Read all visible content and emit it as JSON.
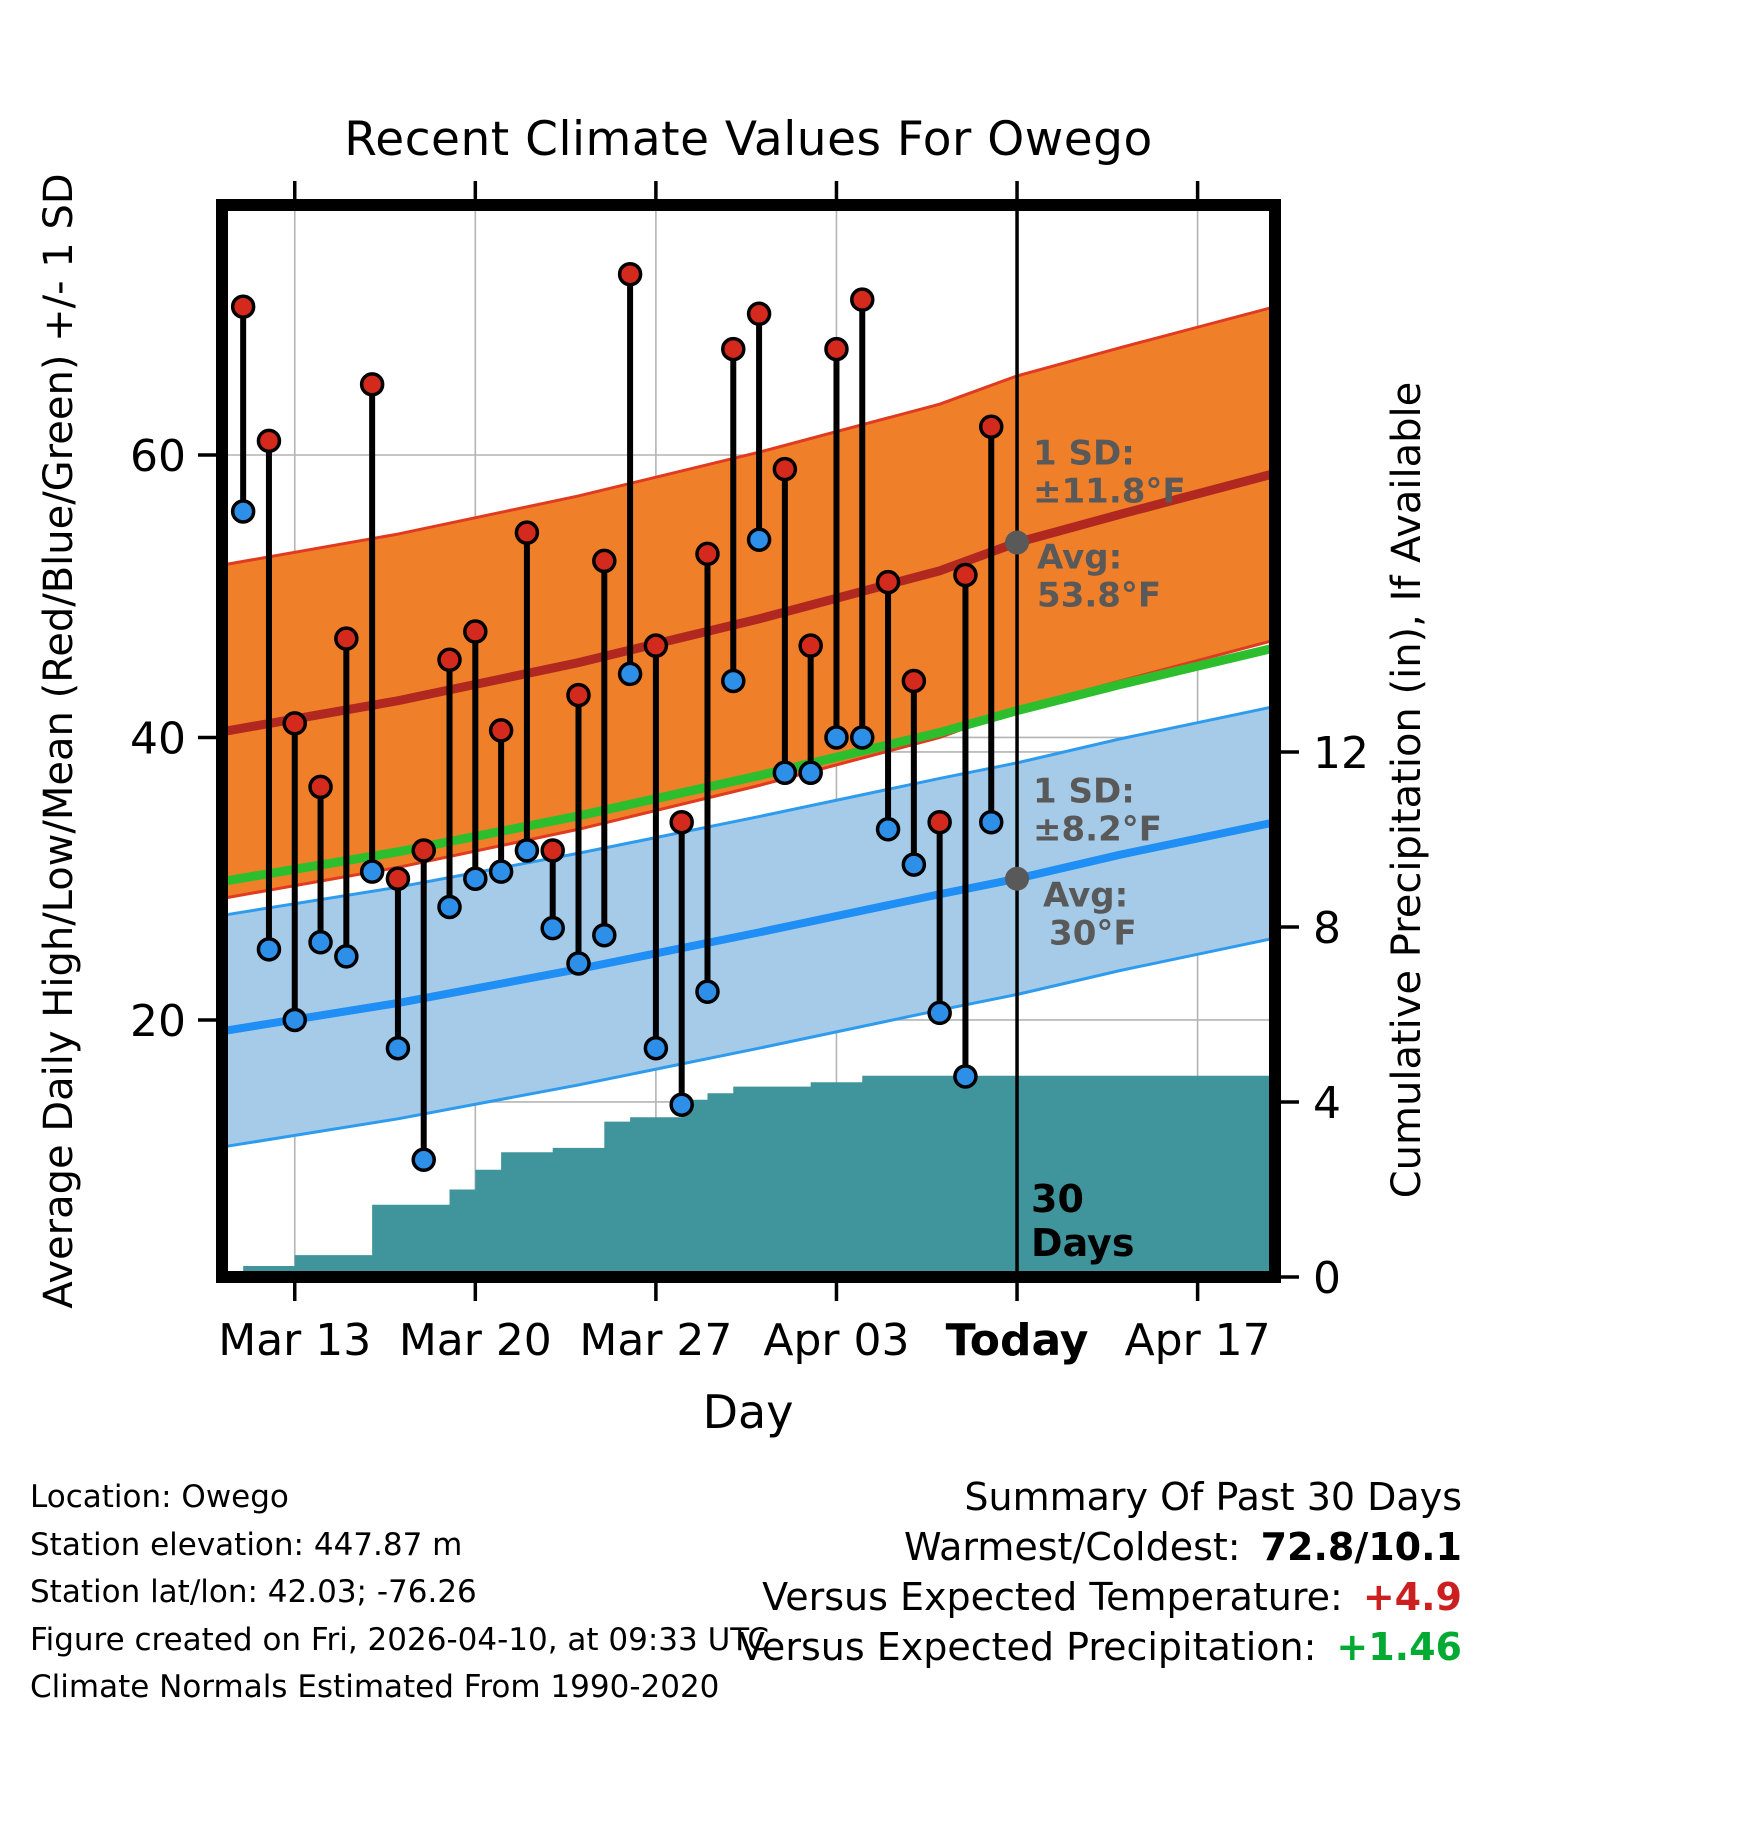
{
  "title": "Recent Climate Values For Owego",
  "axes": {
    "left_label": "Average Daily High/Low/Mean (Red/Blue/Green) +/- 1 SD",
    "right_label": "Cumulative Precipitation (in), If Available",
    "x_label": "Day",
    "left_ticks": [
      20,
      40,
      60
    ],
    "right_ticks": [
      0,
      4,
      8,
      12
    ],
    "x_ticks": [
      {
        "day": 3,
        "label": "Mar 13",
        "bold": false
      },
      {
        "day": 10,
        "label": "Mar 20",
        "bold": false
      },
      {
        "day": 17,
        "label": "Mar 27",
        "bold": false
      },
      {
        "day": 24,
        "label": "Apr 03",
        "bold": false
      },
      {
        "day": 31,
        "label": "Today",
        "bold": true
      },
      {
        "day": 38,
        "label": "Apr 17",
        "bold": false
      }
    ]
  },
  "chart_data": {
    "type": "line",
    "x_day_range": [
      0.18,
      41.0
    ],
    "temp_ylim": [
      1.8,
      77.7
    ],
    "precip_ylim": [
      0,
      24.5
    ],
    "normals": {
      "sd_high": 11.8,
      "sd_low": 8.2,
      "avg_high": [
        [
          0.18,
          40.4
        ],
        [
          7,
          42.6
        ],
        [
          14,
          45.3
        ],
        [
          21,
          48.4
        ],
        [
          28,
          51.8
        ],
        [
          31,
          53.8
        ],
        [
          35,
          55.8
        ],
        [
          41,
          58.7
        ]
      ],
      "avg_low": [
        [
          0.18,
          19.2
        ],
        [
          7,
          21.2
        ],
        [
          14,
          23.6
        ],
        [
          21,
          26.2
        ],
        [
          28,
          28.9
        ],
        [
          31,
          30.0
        ],
        [
          35,
          31.7
        ],
        [
          41,
          34.0
        ]
      ]
    },
    "daily": {
      "start_day": 1,
      "dates": [
        "Mar 11",
        "Mar 12",
        "Mar 13",
        "Mar 14",
        "Mar 15",
        "Mar 16",
        "Mar 17",
        "Mar 18",
        "Mar 19",
        "Mar 20",
        "Mar 21",
        "Mar 22",
        "Mar 23",
        "Mar 24",
        "Mar 25",
        "Mar 26",
        "Mar 27",
        "Mar 28",
        "Mar 29",
        "Mar 30",
        "Mar 31",
        "Apr 01",
        "Apr 02",
        "Apr 03",
        "Apr 04",
        "Apr 05",
        "Apr 06",
        "Apr 07",
        "Apr 08",
        "Apr 09"
      ],
      "highs": [
        70.5,
        61,
        41,
        36.5,
        47,
        65,
        30,
        32,
        45.5,
        47.5,
        40.5,
        54.5,
        32,
        43,
        52.5,
        72.8,
        46.5,
        34,
        53,
        67.5,
        70,
        59,
        46.5,
        67.5,
        71,
        51,
        44,
        34,
        51.5,
        62
      ],
      "lows": [
        56,
        25,
        20,
        25.5,
        24.5,
        30.5,
        18,
        10.1,
        28,
        30,
        30.5,
        32,
        26.5,
        24,
        26,
        44.5,
        18,
        14,
        22,
        44,
        54,
        37.5,
        37.5,
        40,
        40,
        33.5,
        31,
        20.5,
        16,
        34
      ]
    },
    "precip_cumulative_steps": [
      [
        0.18,
        0
      ],
      [
        1,
        0.25
      ],
      [
        3,
        0.5
      ],
      [
        6,
        1.65
      ],
      [
        9,
        2.0
      ],
      [
        10,
        2.45
      ],
      [
        11,
        2.85
      ],
      [
        13,
        2.95
      ],
      [
        15,
        3.55
      ],
      [
        16,
        3.65
      ],
      [
        18,
        4.05
      ],
      [
        19,
        4.2
      ],
      [
        20,
        4.35
      ],
      [
        23,
        4.45
      ],
      [
        25,
        4.6
      ],
      [
        41,
        4.6
      ]
    ],
    "today_day": 31,
    "today_avg_high": 53.8,
    "today_avg_low": 30.0
  },
  "annotations": {
    "high": {
      "lines": [
        "1 SD:",
        "±11.8°F",
        "Avg:",
        "53.8°F"
      ]
    },
    "low": {
      "lines": [
        "1 SD:",
        "±8.2°F",
        "Avg:",
        "30°F"
      ]
    },
    "period": [
      "30",
      "Days"
    ]
  },
  "colors": {
    "grid": "#b4b4b4",
    "high_band": "#f07f2a",
    "high_edge": "#e03b20",
    "high_avg": "#b02820",
    "mean_line": "#2dbe2d",
    "low_band": "#a5cbe8",
    "low_edge": "#2f9bed",
    "low_avg": "#1f8ef5",
    "high_dot": "#d42a1e",
    "low_dot": "#2e8fe8",
    "stem": "#000000",
    "precip_fill": "#3f959b",
    "gray": "#595959"
  },
  "footer_left": [
    "Location: Owego",
    "Station elevation: 447.87 m",
    "Station lat/lon: 42.03; -76.26",
    "Figure created on Fri, 2026-04-10, at 09:33 UTC",
    "Climate Normals Estimated From 1990-2020"
  ],
  "summary": {
    "title": "Summary Of Past 30 Days",
    "rows": [
      {
        "label": "Warmest/Coldest:",
        "value": "72.8/10.1",
        "color": "#000000"
      },
      {
        "label": "Versus Expected Temperature:",
        "value": "+4.9",
        "color": "#cc2020"
      },
      {
        "label": "Versus Expected Precipitation:",
        "value": "+1.46",
        "color": "#00aa33"
      }
    ]
  }
}
